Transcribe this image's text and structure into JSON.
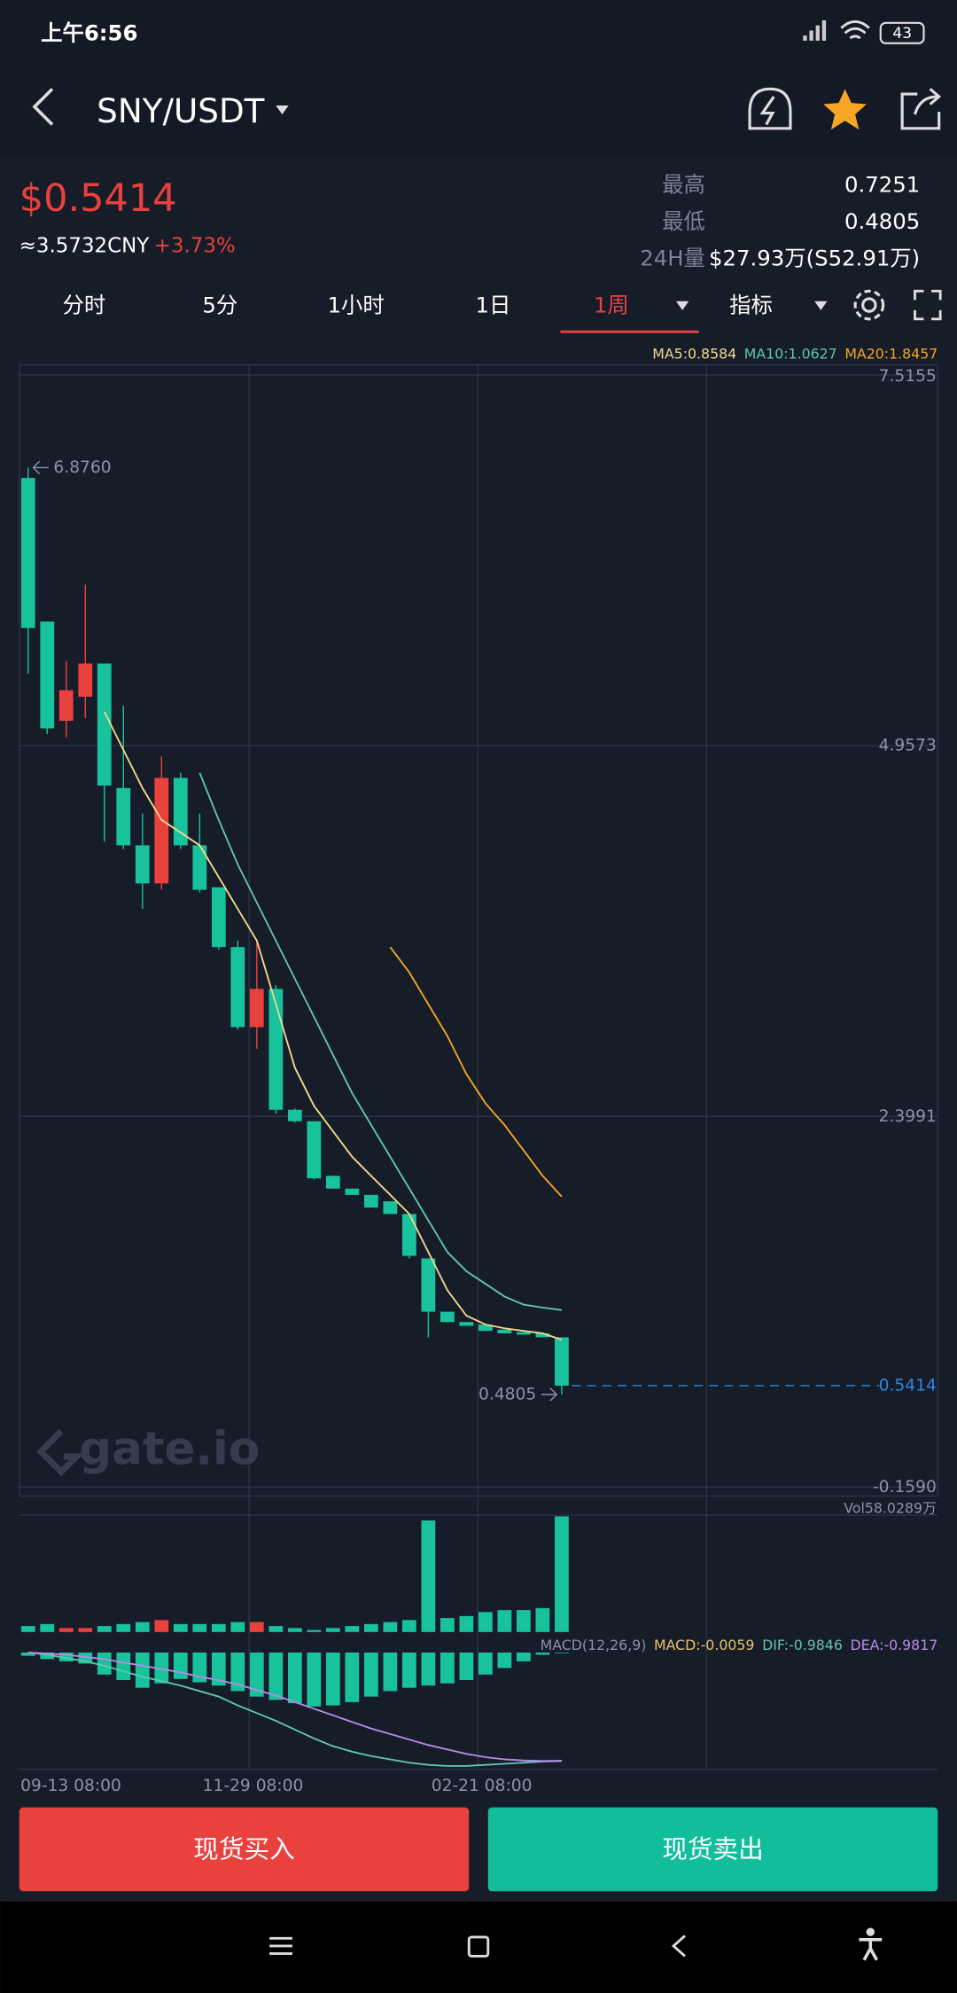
{
  "status_bar": {
    "time": "上午6:56",
    "battery": "43"
  },
  "header": {
    "pair": "SNY/USDT"
  },
  "ticker": {
    "price": "$0.5414",
    "cny": "≈3.5732CNY",
    "change": "+3.73%",
    "stats": [
      {
        "label": "最高",
        "value": "0.7251"
      },
      {
        "label": "最低",
        "value": "0.4805"
      },
      {
        "label": "24H量",
        "value": "$27.93万(S52.91万)"
      }
    ]
  },
  "tabs": [
    "分时",
    "5分",
    "1小时",
    "1日",
    "1周",
    "指标"
  ],
  "active_tab": 4,
  "chart_data": [
    {
      "type": "candlestick",
      "categories": [
        "09-13 08:00",
        null,
        null,
        null,
        null,
        null,
        null,
        null,
        null,
        null,
        null,
        "11-29 08:00",
        null,
        null,
        null,
        null,
        null,
        null,
        null,
        null,
        null,
        null,
        null,
        "02-21 08:00",
        null,
        null,
        null,
        null,
        null
      ],
      "open": [
        6.805,
        5.814,
        5.129,
        5.295,
        5.524,
        4.665,
        4.27,
        4.007,
        4.735,
        4.27,
        3.98,
        3.568,
        3.015,
        3.279,
        2.445,
        2.366,
        1.989,
        1.901,
        1.857,
        1.813,
        1.726,
        1.419,
        1.051,
        0.98,
        0.963,
        0.928,
        0.91,
        0.902,
        0.875
      ],
      "high": [
        6.876,
        5.814,
        5.542,
        6.068,
        5.524,
        5.235,
        4.489,
        4.884,
        4.77,
        4.489,
        3.98,
        3.612,
        3.612,
        3.305,
        2.454,
        2.366,
        1.989,
        1.901,
        1.857,
        1.813,
        1.726,
        1.419,
        1.051,
        0.98,
        0.963,
        0.928,
        0.91,
        0.902,
        0.875
      ],
      "low": [
        5.454,
        5.037,
        5.015,
        5.147,
        4.296,
        4.244,
        3.831,
        3.963,
        4.244,
        3.945,
        3.55,
        2.998,
        2.866,
        2.419,
        2.357,
        1.963,
        1.901,
        1.857,
        1.77,
        1.726,
        1.419,
        0.875,
        0.98,
        0.954,
        0.919,
        0.902,
        0.893,
        0.875,
        0.4805
      ],
      "close": [
        5.77,
        5.077,
        5.34,
        5.524,
        4.682,
        4.27,
        4.007,
        4.735,
        4.27,
        3.963,
        3.568,
        3.015,
        3.279,
        2.445,
        2.366,
        1.972,
        1.901,
        1.857,
        1.77,
        1.726,
        1.437,
        1.051,
        0.98,
        0.954,
        0.919,
        0.902,
        0.893,
        0.875,
        0.5414
      ],
      "up_color": "#e8413e",
      "down_color": "#17c29c",
      "ylim": [
        -0.159,
        7.5155
      ],
      "yticks": [
        7.5155,
        4.9573,
        2.3991,
        {
          "value": -0.159,
          "label": "-0.1590"
        }
      ],
      "series": [
        {
          "name": "MA5:0.8584",
          "color": "#f0d98c",
          "values": [
            null,
            null,
            null,
            null,
            5.191,
            4.928,
            4.665,
            4.445,
            4.358,
            4.27,
            4.051,
            3.831,
            3.612,
            3.173,
            2.735,
            2.472,
            2.296,
            2.121,
            1.989,
            1.858,
            1.726,
            1.463,
            1.2,
            1.024,
            0.963,
            0.937,
            0.919,
            0.902,
            0.8584
          ]
        },
        {
          "name": "MA10:1.0627",
          "color": "#5ec7b0",
          "values": [
            null,
            null,
            null,
            null,
            null,
            null,
            null,
            null,
            null,
            4.77,
            4.445,
            4.138,
            3.875,
            3.612,
            3.349,
            3.086,
            2.823,
            2.56,
            2.34,
            2.121,
            1.902,
            1.682,
            1.463,
            1.331,
            1.244,
            1.156,
            1.1,
            1.08,
            1.0627
          ]
        },
        {
          "name": "MA20:1.8457",
          "color": "#f5a623",
          "values": [
            null,
            null,
            null,
            null,
            null,
            null,
            null,
            null,
            null,
            null,
            null,
            null,
            null,
            null,
            null,
            null,
            null,
            null,
            null,
            3.568,
            3.393,
            3.173,
            2.954,
            2.691,
            2.489,
            2.34,
            2.165,
            1.989,
            1.8457
          ]
        }
      ],
      "annotations": [
        {
          "value": 6.876,
          "label": "6.8760"
        },
        {
          "value": 0.4805,
          "label": "0.4805"
        }
      ],
      "last_price": {
        "value": 0.5414,
        "label": "0.5414",
        "color": "#2f86e0"
      }
    },
    {
      "type": "bar",
      "label": "Vol58.0289万",
      "ylim": [
        0,
        58.0289
      ],
      "values": [
        3,
        4,
        2,
        2,
        3,
        4,
        5,
        6,
        4,
        4,
        4,
        5,
        5,
        3,
        2,
        1,
        2,
        3,
        4,
        5,
        6,
        56,
        7,
        8,
        10,
        11,
        11,
        12,
        58.0289
      ]
    },
    {
      "type": "macd",
      "label": "MACD(12,26,9)",
      "ylim": [
        -1.06,
        0.14
      ],
      "histogram": {
        "name": "MACD:-0.0059",
        "color": "#e8c36a",
        "bar_color": "#17c29c",
        "values": [
          -0.03,
          -0.06,
          -0.08,
          -0.1,
          -0.2,
          -0.25,
          -0.32,
          -0.28,
          -0.24,
          -0.27,
          -0.3,
          -0.35,
          -0.4,
          -0.43,
          -0.46,
          -0.49,
          -0.48,
          -0.45,
          -0.4,
          -0.35,
          -0.32,
          -0.3,
          -0.28,
          -0.25,
          -0.2,
          -0.14,
          -0.08,
          -0.02,
          -0.0059
        ]
      },
      "series": [
        {
          "name": "DIF:-0.9846",
          "color": "#5ec7b0",
          "values": [
            0,
            -0.02,
            -0.05,
            -0.08,
            -0.12,
            -0.17,
            -0.22,
            -0.26,
            -0.3,
            -0.35,
            -0.4,
            -0.48,
            -0.55,
            -0.62,
            -0.7,
            -0.78,
            -0.85,
            -0.9,
            -0.94,
            -0.97,
            -1.0,
            -1.02,
            -1.03,
            -1.03,
            -1.02,
            -1.01,
            -1.0,
            -0.99,
            -0.9846
          ]
        },
        {
          "name": "DEA:-0.9817",
          "color": "#b58be8",
          "values": [
            0,
            -0.01,
            -0.02,
            -0.04,
            -0.06,
            -0.09,
            -0.12,
            -0.15,
            -0.18,
            -0.22,
            -0.25,
            -0.29,
            -0.34,
            -0.39,
            -0.45,
            -0.51,
            -0.57,
            -0.63,
            -0.69,
            -0.74,
            -0.79,
            -0.84,
            -0.88,
            -0.92,
            -0.95,
            -0.97,
            -0.98,
            -0.985,
            -0.9817
          ]
        }
      ]
    }
  ],
  "watermark": "gate.io",
  "buttons": [
    "现货买入",
    "现货卖出"
  ]
}
